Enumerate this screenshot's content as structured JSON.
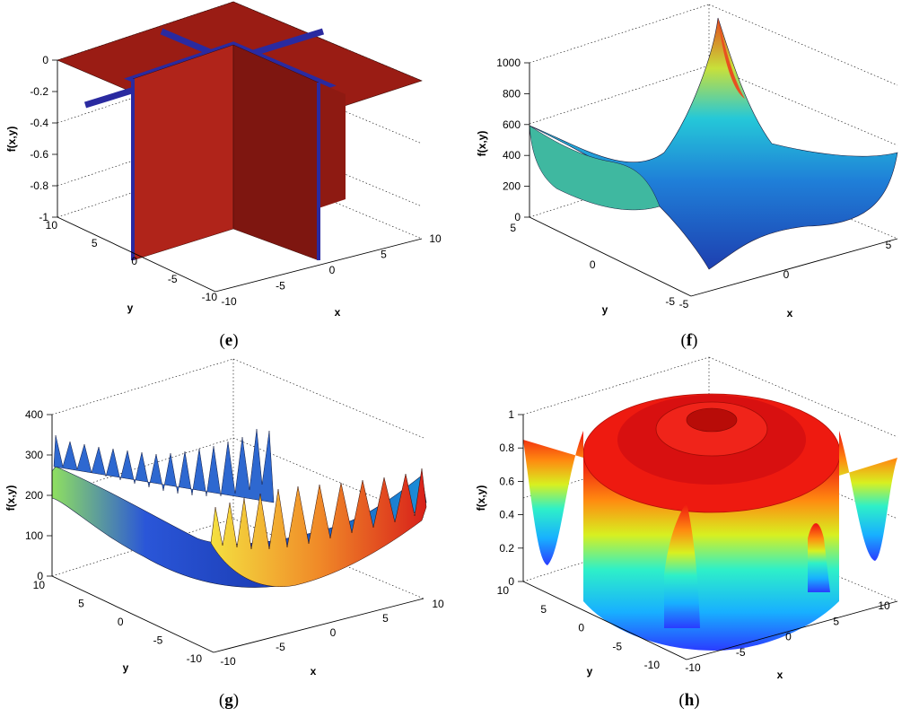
{
  "figure": {
    "panels": [
      {
        "id": "e",
        "caption": "e",
        "zlabel": "f(x,y)",
        "xlabel": "x",
        "ylabel": "y",
        "zticks": [
          "-1",
          "-0.8",
          "-0.6",
          "-0.4",
          "-0.2",
          "0"
        ],
        "xticks": [
          "-10",
          "-5",
          "0",
          "5",
          "10"
        ],
        "yticks": [
          "-10",
          "-5",
          "0",
          "5",
          "10"
        ]
      },
      {
        "id": "f",
        "caption": "f",
        "zlabel": "f(x,y)",
        "xlabel": "x",
        "ylabel": "y",
        "zticks": [
          "0",
          "200",
          "400",
          "600",
          "800",
          "1000"
        ],
        "xticks": [
          "-5",
          "0",
          "5"
        ],
        "yticks": [
          "-5",
          "0",
          "5"
        ]
      },
      {
        "id": "g",
        "caption": "g",
        "zlabel": "f(x,y)",
        "xlabel": "x",
        "ylabel": "y",
        "zticks": [
          "0",
          "100",
          "200",
          "300",
          "400"
        ],
        "xticks": [
          "-10",
          "-5",
          "0",
          "5",
          "10"
        ],
        "yticks": [
          "-10",
          "-5",
          "0",
          "5",
          "10"
        ]
      },
      {
        "id": "h",
        "caption": "h",
        "zlabel": "f(x,y)",
        "xlabel": "x",
        "ylabel": "y",
        "zticks": [
          "0",
          "0.2",
          "0.4",
          "0.6",
          "0.8",
          "1"
        ],
        "xticks": [
          "-10",
          "-5",
          "0",
          "5",
          "10"
        ],
        "yticks": [
          "-10",
          "-5",
          "0",
          "5",
          "10"
        ]
      }
    ]
  },
  "chart_data": [
    {
      "panel": "e",
      "type": "surface",
      "zlabel": "f(x,y)",
      "xlabel": "x",
      "ylabel": "y",
      "xlim": [
        -10,
        10
      ],
      "ylim": [
        -10,
        10
      ],
      "zlim": [
        -1,
        0
      ],
      "grid": true,
      "colormap": "jet"
    },
    {
      "panel": "f",
      "type": "surface",
      "zlabel": "f(x,y)",
      "xlabel": "x",
      "ylabel": "y",
      "xlim": [
        -5,
        5
      ],
      "ylim": [
        -5,
        5
      ],
      "zlim": [
        0,
        1000
      ],
      "grid": true,
      "colormap": "jet"
    },
    {
      "panel": "g",
      "type": "surface",
      "zlabel": "f(x,y)",
      "xlabel": "x",
      "ylabel": "y",
      "xlim": [
        -10,
        10
      ],
      "ylim": [
        -10,
        10
      ],
      "zlim": [
        0,
        400
      ],
      "grid": true,
      "colormap": "jet"
    },
    {
      "panel": "h",
      "type": "surface",
      "zlabel": "f(x,y)",
      "xlabel": "x",
      "ylabel": "y",
      "xlim": [
        -10,
        10
      ],
      "ylim": [
        -10,
        10
      ],
      "zlim": [
        0,
        1
      ],
      "grid": true,
      "colormap": "jet"
    }
  ]
}
